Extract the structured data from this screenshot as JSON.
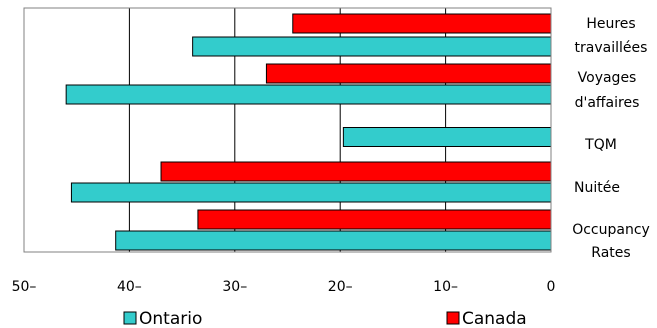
{
  "chart_data": {
    "type": "bar",
    "orientation": "horizontal",
    "x_direction": "reversed",
    "xlim": [
      50,
      0
    ],
    "x_ticks": [
      "50–",
      "40–",
      "30–",
      "20–",
      "10–",
      "0"
    ],
    "x_tick_values": [
      50,
      40,
      30,
      20,
      10,
      0
    ],
    "grid": true,
    "categories": [
      [
        "Heures",
        "travaillées"
      ],
      [
        "Voyages",
        "d'affaires"
      ],
      [
        "TQM"
      ],
      [
        "Nuitée"
      ],
      [
        "Occupancy",
        "Rates"
      ]
    ],
    "series": [
      {
        "name": "Canada",
        "color": "#ff0000",
        "values": [
          24.5,
          27,
          null,
          37,
          33.5
        ]
      },
      {
        "name": "Ontario",
        "color": "#33cccc",
        "values": [
          34,
          46,
          19.7,
          45.5,
          41.3
        ]
      }
    ],
    "legend_placement": "bottom"
  }
}
